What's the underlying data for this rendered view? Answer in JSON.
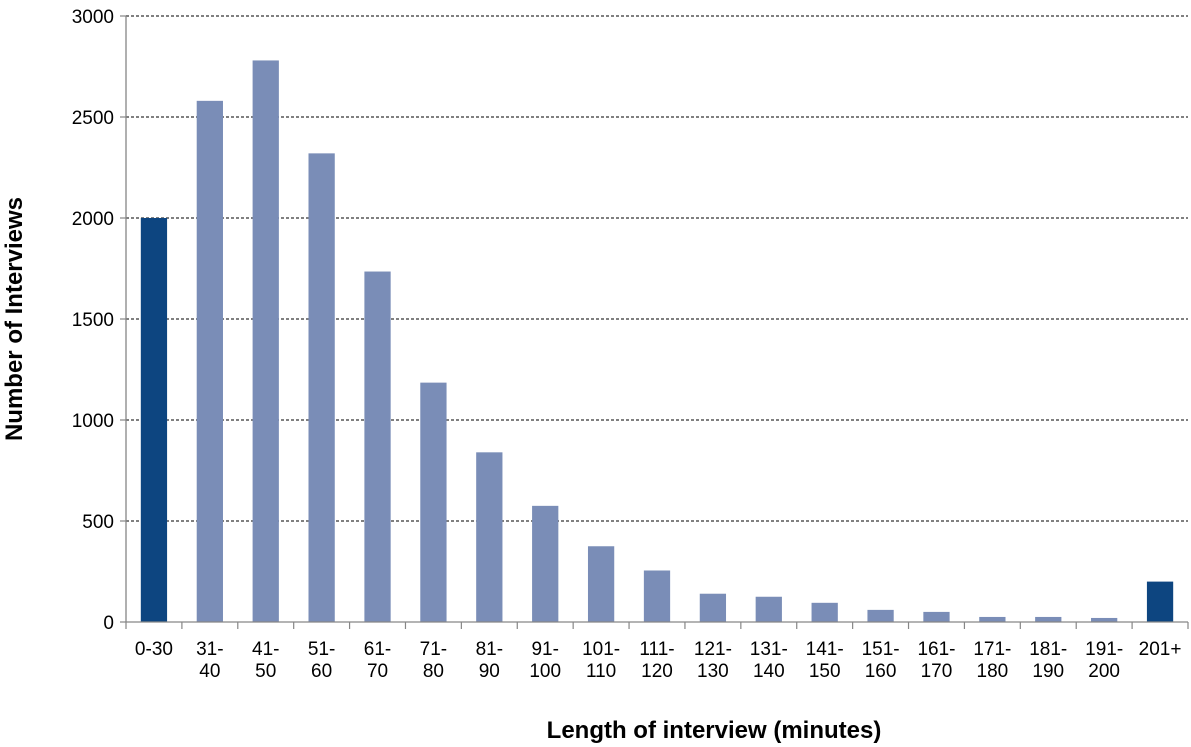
{
  "chart_data": {
    "type": "bar",
    "title": "",
    "xlabel": "Length of interview (minutes)",
    "ylabel": "Number of Interviews",
    "ylim": [
      0,
      3000
    ],
    "yticks": [
      0,
      500,
      1000,
      1500,
      2000,
      2500,
      3000
    ],
    "grid": "horizontal dashed",
    "legend": "none",
    "categories": [
      [
        "0-30"
      ],
      [
        "31-",
        "40"
      ],
      [
        "41-",
        "50"
      ],
      [
        "51-",
        "60"
      ],
      [
        "61-",
        "70"
      ],
      [
        "71-",
        "80"
      ],
      [
        "81-",
        "90"
      ],
      [
        "91-",
        "100"
      ],
      [
        "101-",
        "110"
      ],
      [
        "111-",
        "120"
      ],
      [
        "121-",
        "130"
      ],
      [
        "131-",
        "140"
      ],
      [
        "141-",
        "150"
      ],
      [
        "151-",
        "160"
      ],
      [
        "161-",
        "170"
      ],
      [
        "171-",
        "180"
      ],
      [
        "181-",
        "190"
      ],
      [
        "191-",
        "200"
      ],
      [
        "201+"
      ]
    ],
    "values": [
      2000,
      2580,
      2780,
      2320,
      1735,
      1185,
      840,
      575,
      375,
      255,
      140,
      125,
      95,
      60,
      50,
      25,
      25,
      20,
      200
    ],
    "highlighted": [
      0,
      18
    ],
    "colors": {
      "bar": "#7a8db7",
      "highlight": "#0d4580",
      "axis": "#868686",
      "grid": "#000000"
    }
  }
}
